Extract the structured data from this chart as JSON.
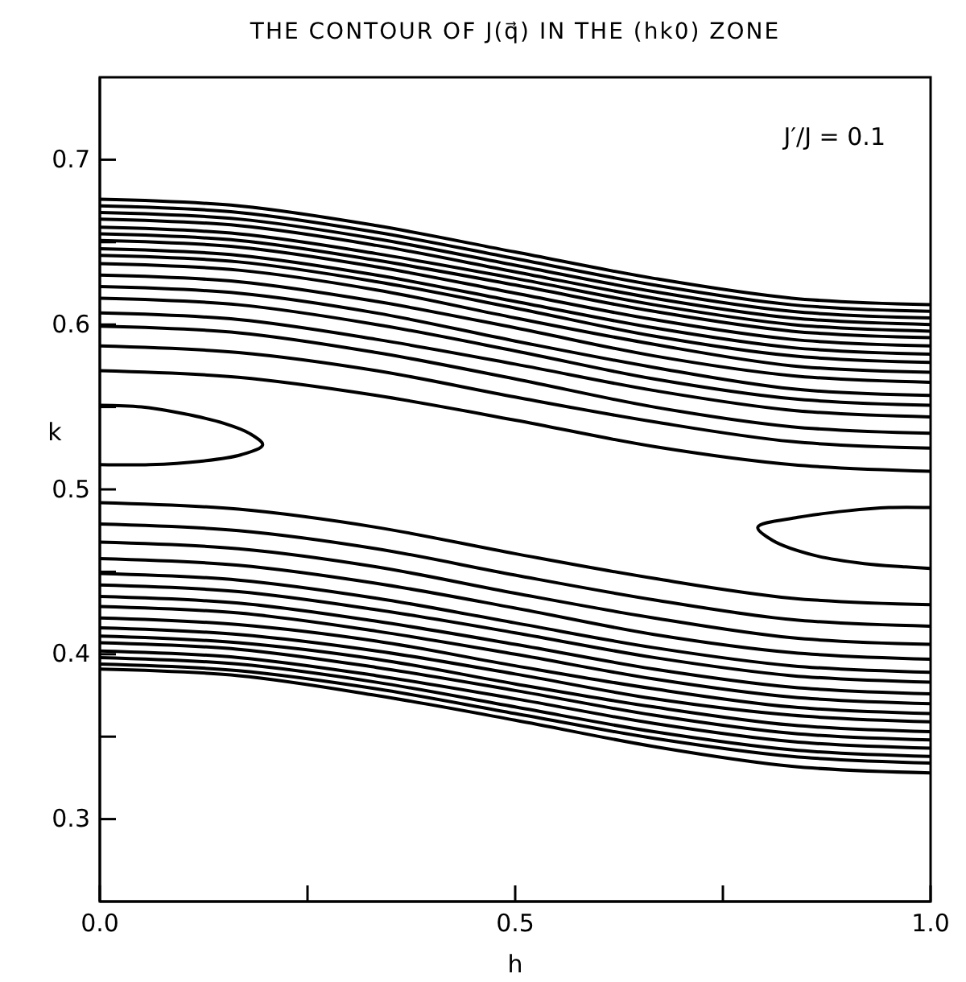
{
  "chart_data": {
    "type": "line",
    "title": "THE CONTOUR OF J(q⃗) IN THE (hk0) ZONE",
    "xlabel": "h",
    "ylabel": "k",
    "annotations": [
      "J′/J = 0.1"
    ],
    "x": [
      0,
      0.167,
      0.333,
      0.5,
      0.667,
      0.833,
      1
    ],
    "xlim": [
      0,
      1
    ],
    "ylim": [
      0.25,
      0.75
    ],
    "xticks": [
      {
        "value": 0,
        "label": "0.0"
      },
      {
        "value": 0.25,
        "label": null
      },
      {
        "value": 0.5,
        "label": "0.5"
      },
      {
        "value": 0.75,
        "label": null
      },
      {
        "value": 1,
        "label": "1.0"
      }
    ],
    "yticks": [
      0.3,
      {
        "value": 0.35,
        "label": null
      },
      0.4,
      {
        "value": 0.45,
        "label": null
      },
      0.5,
      {
        "value": 0.55,
        "label": null
      },
      0.6,
      {
        "value": 0.65,
        "label": null
      },
      0.7
    ],
    "grid": false,
    "marker": "none",
    "line_style": "solid",
    "series": [
      {
        "color": "#000000",
        "values": [
          0.676,
          0.672,
          0.66,
          0.644,
          0.628,
          0.616,
          0.612
        ]
      },
      {
        "color": "#000000",
        "values": [
          0.672,
          0.668,
          0.656,
          0.64,
          0.624,
          0.612,
          0.608
        ]
      },
      {
        "color": "#000000",
        "values": [
          0.668,
          0.664,
          0.652,
          0.636,
          0.62,
          0.608,
          0.604
        ]
      },
      {
        "color": "#000000",
        "values": [
          0.664,
          0.66,
          0.648,
          0.632,
          0.616,
          0.604,
          0.6
        ]
      },
      {
        "color": "#000000",
        "values": [
          0.659,
          0.655,
          0.643,
          0.628,
          0.612,
          0.6,
          0.596
        ]
      },
      {
        "color": "#000000",
        "values": [
          0.655,
          0.651,
          0.639,
          0.624,
          0.608,
          0.596,
          0.592
        ]
      },
      {
        "color": "#000000",
        "values": [
          0.651,
          0.647,
          0.635,
          0.619,
          0.603,
          0.591,
          0.587
        ]
      },
      {
        "color": "#000000",
        "values": [
          0.646,
          0.642,
          0.63,
          0.614,
          0.598,
          0.586,
          0.582
        ]
      },
      {
        "color": "#000000",
        "values": [
          0.642,
          0.638,
          0.626,
          0.61,
          0.593,
          0.581,
          0.577
        ]
      },
      {
        "color": "#000000",
        "values": [
          0.637,
          0.633,
          0.621,
          0.604,
          0.588,
          0.575,
          0.571
        ]
      },
      {
        "color": "#000000",
        "values": [
          0.63,
          0.626,
          0.614,
          0.598,
          0.581,
          0.569,
          0.565
        ]
      },
      {
        "color": "#000000",
        "values": [
          0.623,
          0.619,
          0.607,
          0.59,
          0.574,
          0.561,
          0.557
        ]
      },
      {
        "color": "#000000",
        "values": [
          0.616,
          0.612,
          0.6,
          0.584,
          0.567,
          0.555,
          0.551
        ]
      },
      {
        "color": "#000000",
        "values": [
          0.607,
          0.603,
          0.591,
          0.576,
          0.56,
          0.548,
          0.544
        ]
      },
      {
        "color": "#000000",
        "values": [
          0.599,
          0.595,
          0.583,
          0.567,
          0.55,
          0.538,
          0.534
        ]
      },
      {
        "color": "#000000",
        "values": [
          0.587,
          0.583,
          0.572,
          0.556,
          0.541,
          0.529,
          0.525
        ]
      },
      {
        "color": "#000000",
        "values": [
          0.572,
          0.568,
          0.557,
          0.542,
          0.526,
          0.515,
          0.511
        ]
      },
      {
        "color": "#000000",
        "x": [
          0,
          0.05,
          0.1,
          0.15,
          0.18,
          0.196,
          0.17,
          0.12,
          0.06,
          0
        ],
        "values": [
          0.551,
          0.55,
          0.546,
          0.54,
          0.534,
          0.527,
          0.521,
          0.517,
          0.515,
          0.515
        ]
      },
      {
        "color": "#000000",
        "x": [
          1,
          0.95,
          0.9,
          0.84,
          0.792,
          0.81,
          0.86,
          0.92,
          0.97,
          1
        ],
        "values": [
          0.489,
          0.489,
          0.487,
          0.483,
          0.477,
          0.469,
          0.46,
          0.455,
          0.453,
          0.452
        ]
      },
      {
        "color": "#000000",
        "values": [
          0.492,
          0.488,
          0.477,
          0.461,
          0.446,
          0.434,
          0.43
        ]
      },
      {
        "color": "#000000",
        "values": [
          0.479,
          0.475,
          0.464,
          0.448,
          0.433,
          0.421,
          0.417
        ]
      },
      {
        "color": "#000000",
        "values": [
          0.468,
          0.464,
          0.453,
          0.437,
          0.422,
          0.41,
          0.406
        ]
      },
      {
        "color": "#000000",
        "values": [
          0.458,
          0.454,
          0.443,
          0.428,
          0.412,
          0.401,
          0.397
        ]
      },
      {
        "color": "#000000",
        "values": [
          0.449,
          0.445,
          0.434,
          0.419,
          0.404,
          0.393,
          0.389
        ]
      },
      {
        "color": "#000000",
        "values": [
          0.442,
          0.438,
          0.427,
          0.413,
          0.398,
          0.387,
          0.383
        ]
      },
      {
        "color": "#000000",
        "values": [
          0.435,
          0.431,
          0.42,
          0.406,
          0.391,
          0.38,
          0.376
        ]
      },
      {
        "color": "#000000",
        "values": [
          0.429,
          0.425,
          0.414,
          0.4,
          0.385,
          0.374,
          0.37
        ]
      },
      {
        "color": "#000000",
        "values": [
          0.422,
          0.418,
          0.408,
          0.393,
          0.379,
          0.368,
          0.364
        ]
      },
      {
        "color": "#000000",
        "values": [
          0.416,
          0.412,
          0.402,
          0.388,
          0.373,
          0.363,
          0.359
        ]
      },
      {
        "color": "#000000",
        "values": [
          0.411,
          0.407,
          0.397,
          0.382,
          0.368,
          0.357,
          0.353
        ]
      },
      {
        "color": "#000000",
        "values": [
          0.407,
          0.403,
          0.392,
          0.378,
          0.363,
          0.352,
          0.348
        ]
      },
      {
        "color": "#000000",
        "values": [
          0.402,
          0.398,
          0.387,
          0.373,
          0.358,
          0.347,
          0.343
        ]
      },
      {
        "color": "#000000",
        "values": [
          0.398,
          0.394,
          0.383,
          0.368,
          0.353,
          0.342,
          0.338
        ]
      },
      {
        "color": "#000000",
        "values": [
          0.394,
          0.39,
          0.379,
          0.364,
          0.349,
          0.338,
          0.334
        ]
      },
      {
        "color": "#000000",
        "values": [
          0.391,
          0.387,
          0.375,
          0.36,
          0.344,
          0.332,
          0.328
        ]
      }
    ]
  }
}
